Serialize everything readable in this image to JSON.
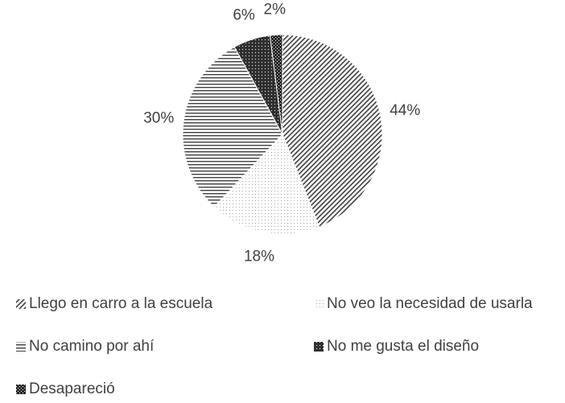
{
  "chart_data": {
    "type": "pie",
    "categories": [
      "Llego en carro a la escuela",
      "No veo la necesidad de usarla",
      "No camino por ahí",
      "No me gusta el diseño",
      "Desapareció"
    ],
    "values": [
      44,
      18,
      30,
      6,
      2
    ],
    "value_labels": [
      "44%",
      "18%",
      "30%",
      "6%",
      "2%"
    ],
    "colors": [
      "#404040",
      "#a6a6a6",
      "#404040",
      "#303030",
      "#262626"
    ],
    "patterns": [
      "diagonal",
      "dots",
      "horizontal",
      "grid",
      "check"
    ],
    "legend": "bottom"
  }
}
